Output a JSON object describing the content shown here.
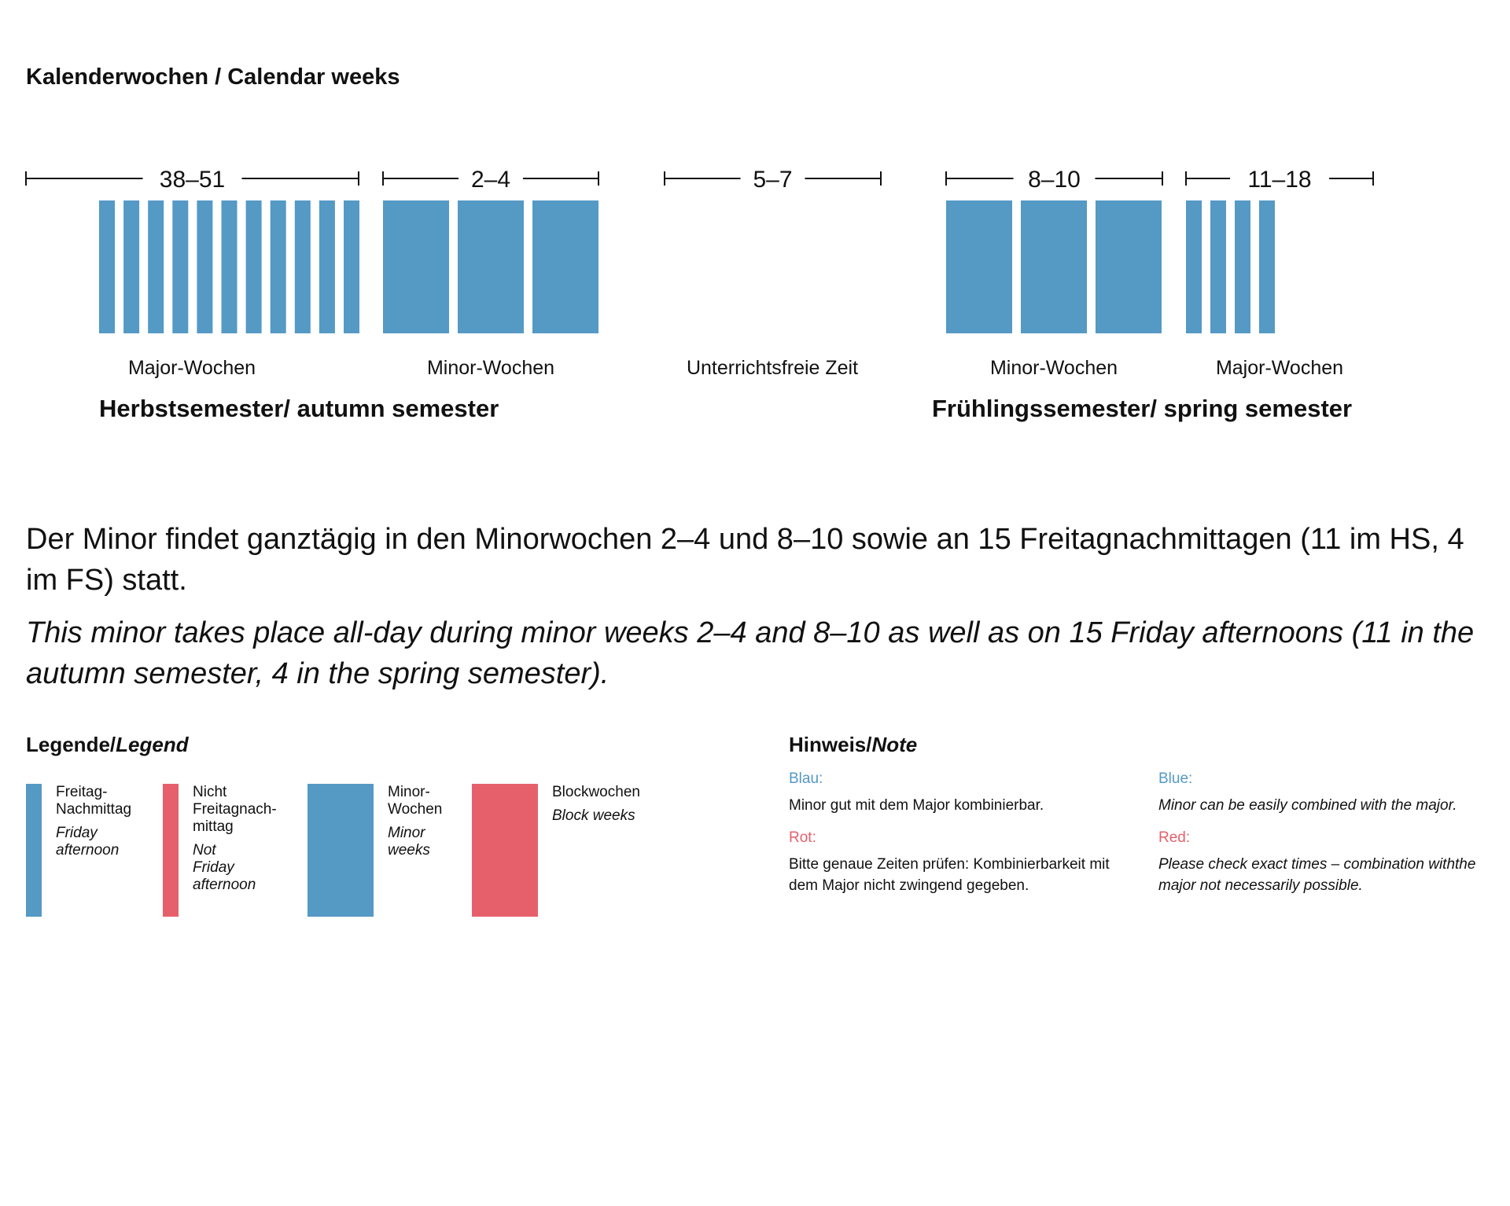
{
  "heading": "Kalenderwochen / Calendar weeks",
  "colors": {
    "blue": "#5599c5",
    "red": "#e6606c",
    "text": "#111111"
  },
  "timeline": {
    "periods": [
      {
        "range": "38–51",
        "type": "major",
        "bars": 11,
        "label": "Major-Wochen"
      },
      {
        "range": "2–4",
        "type": "minor",
        "bars": 3,
        "label": "Minor-Wochen"
      },
      {
        "range": "5–7",
        "type": "none",
        "bars": 0,
        "label": "Unterrichtsfreie Zeit"
      },
      {
        "range": "8–10",
        "type": "minor",
        "bars": 3,
        "label": "Minor-Wochen"
      },
      {
        "range": "11–18",
        "type": "major",
        "bars": 4,
        "label": "Major-Wochen"
      }
    ],
    "semesters": {
      "autumn": "Herbstsemester/ autumn semester",
      "spring": "Frühlingssemester/ spring semester"
    }
  },
  "intro": {
    "de": "Der Minor findet ganztägig in den Minorwochen 2–4 und 8–10 sowie an 15 Freitagnachmittagen (11 im HS, 4 im FS) statt.",
    "en": "This minor takes place all-day during minor weeks 2–4 and 8–10 as well as on 15 Friday afternoons (11 in the autumn semester, 4 in the spring semester)."
  },
  "legend": {
    "title_de": "Legende/",
    "title_en": "Legend",
    "items": [
      {
        "de": "Freitag-\nNachmittag",
        "en": "Friday\nafternoon",
        "color": "#5599c5",
        "kind": "thin"
      },
      {
        "de": "Nicht\nFreitagnach-\nmittag",
        "en": "Not\nFriday\nafternoon",
        "color": "#e6606c",
        "kind": "thin"
      },
      {
        "de": "Minor-\nWochen",
        "en": "Minor\nweeks",
        "color": "#5599c5",
        "kind": "wide"
      },
      {
        "de": "Blockwochen",
        "en": "Block weeks",
        "color": "#e6606c",
        "kind": "wide"
      }
    ]
  },
  "note": {
    "title_de": "Hinweis/",
    "title_en": "Note",
    "blue_label_de": "Blau:",
    "blue_text_de": "Minor gut mit dem Major kombinierbar.",
    "red_label_de": "Rot:",
    "red_text_de": "Bitte genaue Zeiten prüfen: Kombinierbarkeit mit dem Major nicht zwingend gegeben.",
    "blue_label_en": "Blue:",
    "blue_text_en": "Minor can be easily combined with the major.",
    "red_label_en": "Red:",
    "red_text_en": "Please check exact times – combination withthe major not necessarily possible."
  }
}
